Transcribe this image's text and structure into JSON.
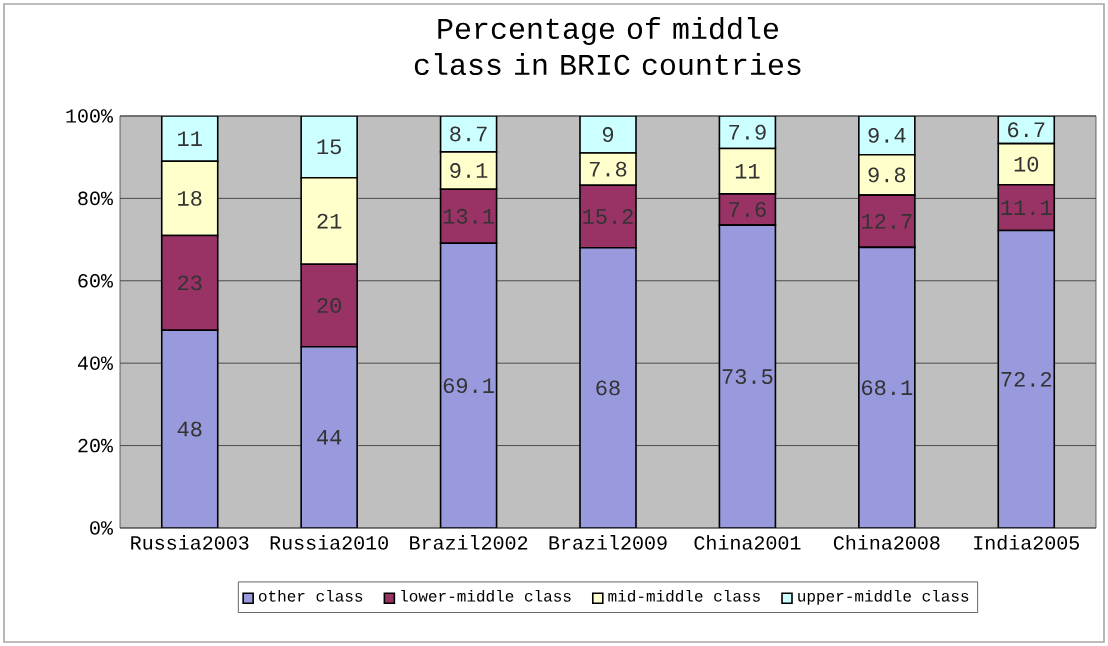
{
  "chart_data": {
    "type": "bar",
    "stacked": true,
    "title": "Percentage of middle class in BRIC countries",
    "categories": [
      "Russia2003",
      "Russia2010",
      "Brazil2002",
      "Brazil2009",
      "China2001",
      "China2008",
      "India2005"
    ],
    "series": [
      {
        "name": "other class",
        "color": "#9999dd",
        "values": [
          48,
          44,
          69.1,
          68,
          73.5,
          68.1,
          72.2
        ]
      },
      {
        "name": "lower-middle class",
        "color": "#993366",
        "values": [
          23,
          20,
          13.1,
          15.2,
          7.6,
          12.7,
          11.1
        ]
      },
      {
        "name": "mid-middle class",
        "color": "#ffffcc",
        "values": [
          18,
          21,
          9.1,
          7.8,
          11,
          9.8,
          10
        ]
      },
      {
        "name": "upper-middle class",
        "color": "#ccffff",
        "values": [
          11,
          15,
          8.7,
          9,
          7.9,
          9.4,
          6.7
        ]
      }
    ],
    "ylim": [
      0,
      100
    ],
    "yticks": [
      {
        "value": 0,
        "label": "0%"
      },
      {
        "value": 20,
        "label": "20%"
      },
      {
        "value": 40,
        "label": "40%"
      },
      {
        "value": 60,
        "label": "60%"
      },
      {
        "value": 80,
        "label": "80%"
      },
      {
        "value": 100,
        "label": "100%"
      }
    ],
    "grid": "y",
    "legend": "bottom",
    "data_labels": true
  }
}
